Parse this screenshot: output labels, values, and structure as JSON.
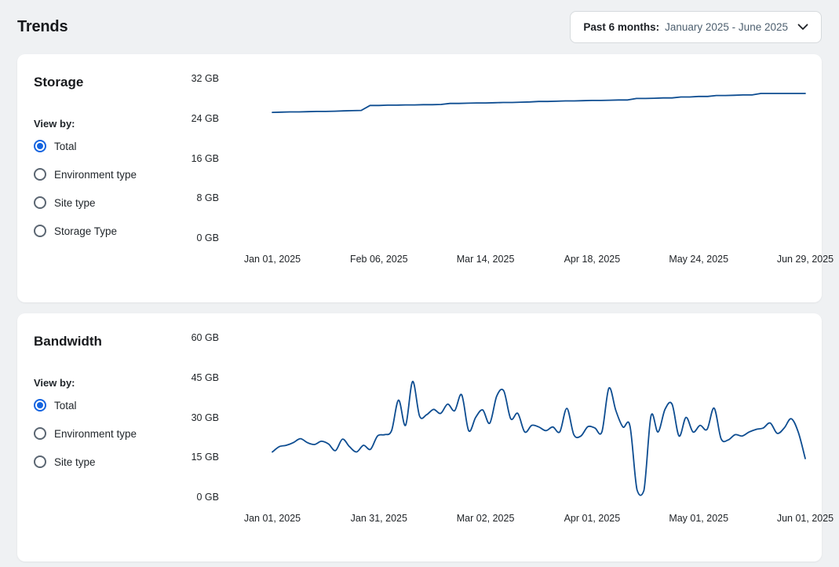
{
  "page": {
    "title": "Trends"
  },
  "period_selector": {
    "label": "Past 6 months:",
    "value": "January 2025 - June 2025",
    "chevron_icon": "chevron-down"
  },
  "colors": {
    "line": "#0e4d91",
    "radio_selected": "#1464e0",
    "page_bg": "#eff1f3",
    "card_bg": "#ffffff"
  },
  "cards": [
    {
      "title": "Storage",
      "view_by_label": "View by:",
      "options": [
        {
          "label": "Total",
          "selected": true
        },
        {
          "label": "Environment type",
          "selected": false
        },
        {
          "label": "Site type",
          "selected": false
        },
        {
          "label": "Storage Type",
          "selected": false
        }
      ]
    },
    {
      "title": "Bandwidth",
      "view_by_label": "View by:",
      "options": [
        {
          "label": "Total",
          "selected": true
        },
        {
          "label": "Environment type",
          "selected": false
        },
        {
          "label": "Site type",
          "selected": false
        }
      ]
    }
  ],
  "chart_data": [
    {
      "type": "line",
      "title": "Storage",
      "unit": "GB",
      "legend": "none",
      "grid": false,
      "interpolation": "linear",
      "ylim": [
        0,
        32
      ],
      "y_ticks": [
        "32 GB",
        "24 GB",
        "16 GB",
        "8 GB",
        "0 GB"
      ],
      "x_ticks": [
        "Jan 01, 2025",
        "Feb 06, 2025",
        "Mar 14, 2025",
        "Apr 18, 2025",
        "May 24, 2025",
        "Jun 29, 2025"
      ],
      "x_range_days": [
        0,
        180
      ],
      "sample_step_days": 3,
      "series": [
        {
          "name": "Total",
          "values": [
            25.2,
            25.25,
            25.3,
            25.3,
            25.35,
            25.4,
            25.4,
            25.45,
            25.5,
            25.55,
            25.6,
            26.6,
            26.6,
            26.65,
            26.65,
            26.7,
            26.7,
            26.75,
            26.75,
            26.8,
            27.0,
            27.0,
            27.05,
            27.1,
            27.1,
            27.15,
            27.2,
            27.2,
            27.25,
            27.3,
            27.4,
            27.4,
            27.45,
            27.5,
            27.5,
            27.55,
            27.6,
            27.6,
            27.65,
            27.7,
            27.7,
            28.0,
            28.0,
            28.05,
            28.1,
            28.1,
            28.3,
            28.3,
            28.4,
            28.4,
            28.6,
            28.6,
            28.65,
            28.7,
            28.7,
            29.0,
            29.0,
            29.0,
            29.0,
            29.0,
            29.0
          ]
        }
      ]
    },
    {
      "type": "line",
      "title": "Bandwidth",
      "unit": "GB",
      "legend": "none",
      "grid": false,
      "interpolation": "smooth",
      "ylim": [
        0,
        60
      ],
      "y_ticks": [
        "60 GB",
        "45 GB",
        "30 GB",
        "15 GB",
        "0 GB"
      ],
      "x_ticks": [
        "Jan 01, 2025",
        "Jan 31, 2025",
        "Mar 02, 2025",
        "Apr 01, 2025",
        "May 01, 2025",
        "Jun 01, 2025"
      ],
      "x_range_days": [
        0,
        152
      ],
      "sample_step_days": 2,
      "series": [
        {
          "name": "Total",
          "values": [
            17.0,
            19.0,
            19.5,
            20.5,
            22.0,
            20.5,
            19.8,
            21.0,
            20.0,
            17.5,
            21.8,
            19.0,
            17.0,
            19.5,
            18.0,
            23.0,
            23.5,
            25.0,
            36.5,
            27.0,
            43.5,
            30.5,
            31.0,
            33.0,
            31.5,
            35.0,
            32.5,
            38.5,
            25.0,
            30.0,
            32.8,
            27.8,
            38.0,
            40.0,
            29.5,
            31.5,
            24.5,
            27.0,
            26.4,
            25.0,
            26.4,
            24.6,
            33.4,
            23.5,
            23.0,
            26.5,
            26.0,
            24.6,
            41.0,
            32.5,
            26.4,
            26.8,
            2.8,
            2.5,
            30.5,
            24.5,
            33.0,
            35.0,
            23.0,
            30.0,
            24.5,
            27.0,
            25.5,
            33.5,
            22.0,
            21.5,
            23.5,
            23.0,
            24.5,
            25.5,
            26.0,
            27.9,
            24.0,
            26.0,
            29.5,
            24.5,
            14.5
          ]
        }
      ]
    }
  ]
}
